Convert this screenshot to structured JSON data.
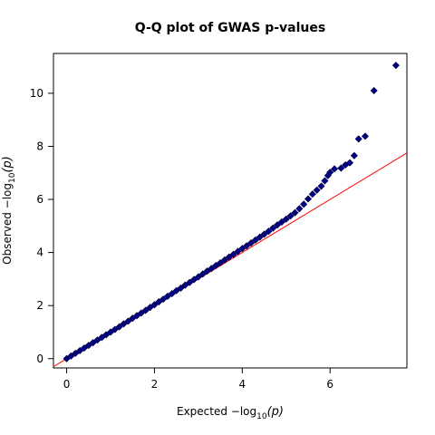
{
  "chart_data": {
    "type": "scatter",
    "title": "Q-Q plot of GWAS p-values",
    "xlabel": {
      "prefix": "Expected  −log",
      "sub": "10",
      "suffix": "(p)"
    },
    "ylabel": {
      "prefix": "Observed  −log",
      "sub": "10",
      "suffix": "(p)"
    },
    "xlim": [
      -0.3,
      7.75
    ],
    "ylim": [
      -0.35,
      11.5
    ],
    "xticks": [
      0,
      2,
      4,
      6
    ],
    "yticks": [
      0,
      2,
      4,
      6,
      8,
      10
    ],
    "grid": false,
    "reference_line": {
      "slope": 1,
      "intercept": 0,
      "color": "#ff0000"
    },
    "marker": {
      "shape": "diamond",
      "fill": "#00008b",
      "stroke": "#000033"
    },
    "series": [
      {
        "points": [
          [
            0.0,
            0.0
          ],
          [
            0.1,
            0.1
          ],
          [
            0.2,
            0.2
          ],
          [
            0.3,
            0.3
          ],
          [
            0.4,
            0.4
          ],
          [
            0.5,
            0.5
          ],
          [
            0.6,
            0.6
          ],
          [
            0.7,
            0.7
          ],
          [
            0.8,
            0.8
          ],
          [
            0.9,
            0.9
          ],
          [
            1.0,
            1.0
          ],
          [
            1.1,
            1.1
          ],
          [
            1.2,
            1.2
          ],
          [
            1.3,
            1.31
          ],
          [
            1.4,
            1.41
          ],
          [
            1.5,
            1.52
          ],
          [
            1.6,
            1.62
          ],
          [
            1.7,
            1.72
          ],
          [
            1.8,
            1.82
          ],
          [
            1.9,
            1.93
          ],
          [
            2.0,
            2.03
          ],
          [
            2.1,
            2.14
          ],
          [
            2.2,
            2.24
          ],
          [
            2.3,
            2.35
          ],
          [
            2.4,
            2.45
          ],
          [
            2.5,
            2.56
          ],
          [
            2.6,
            2.66
          ],
          [
            2.7,
            2.77
          ],
          [
            2.8,
            2.87
          ],
          [
            2.9,
            2.98
          ],
          [
            3.0,
            3.08
          ],
          [
            3.1,
            3.19
          ],
          [
            3.2,
            3.3
          ],
          [
            3.3,
            3.4
          ],
          [
            3.4,
            3.51
          ],
          [
            3.5,
            3.61
          ],
          [
            3.6,
            3.72
          ],
          [
            3.7,
            3.83
          ],
          [
            3.8,
            3.93
          ],
          [
            3.9,
            4.04
          ],
          [
            4.0,
            4.15
          ],
          [
            4.1,
            4.25
          ],
          [
            4.2,
            4.36
          ],
          [
            4.3,
            4.47
          ],
          [
            4.4,
            4.58
          ],
          [
            4.5,
            4.69
          ],
          [
            4.6,
            4.8
          ],
          [
            4.7,
            4.92
          ],
          [
            4.8,
            5.04
          ],
          [
            4.9,
            5.15
          ],
          [
            5.0,
            5.26
          ],
          [
            5.1,
            5.38
          ],
          [
            5.2,
            5.5
          ],
          [
            5.3,
            5.65
          ],
          [
            5.4,
            5.82
          ],
          [
            5.5,
            6.02
          ],
          [
            5.6,
            6.2
          ],
          [
            5.7,
            6.35
          ],
          [
            5.8,
            6.5
          ],
          [
            5.88,
            6.7
          ],
          [
            5.95,
            6.9
          ],
          [
            6.0,
            7.02
          ],
          [
            6.1,
            7.15
          ],
          [
            6.25,
            7.18
          ],
          [
            6.35,
            7.3
          ],
          [
            6.45,
            7.38
          ],
          [
            6.55,
            7.65
          ],
          [
            6.65,
            8.28
          ],
          [
            6.8,
            8.38
          ],
          [
            7.0,
            10.1
          ],
          [
            7.5,
            11.05
          ]
        ]
      }
    ]
  }
}
